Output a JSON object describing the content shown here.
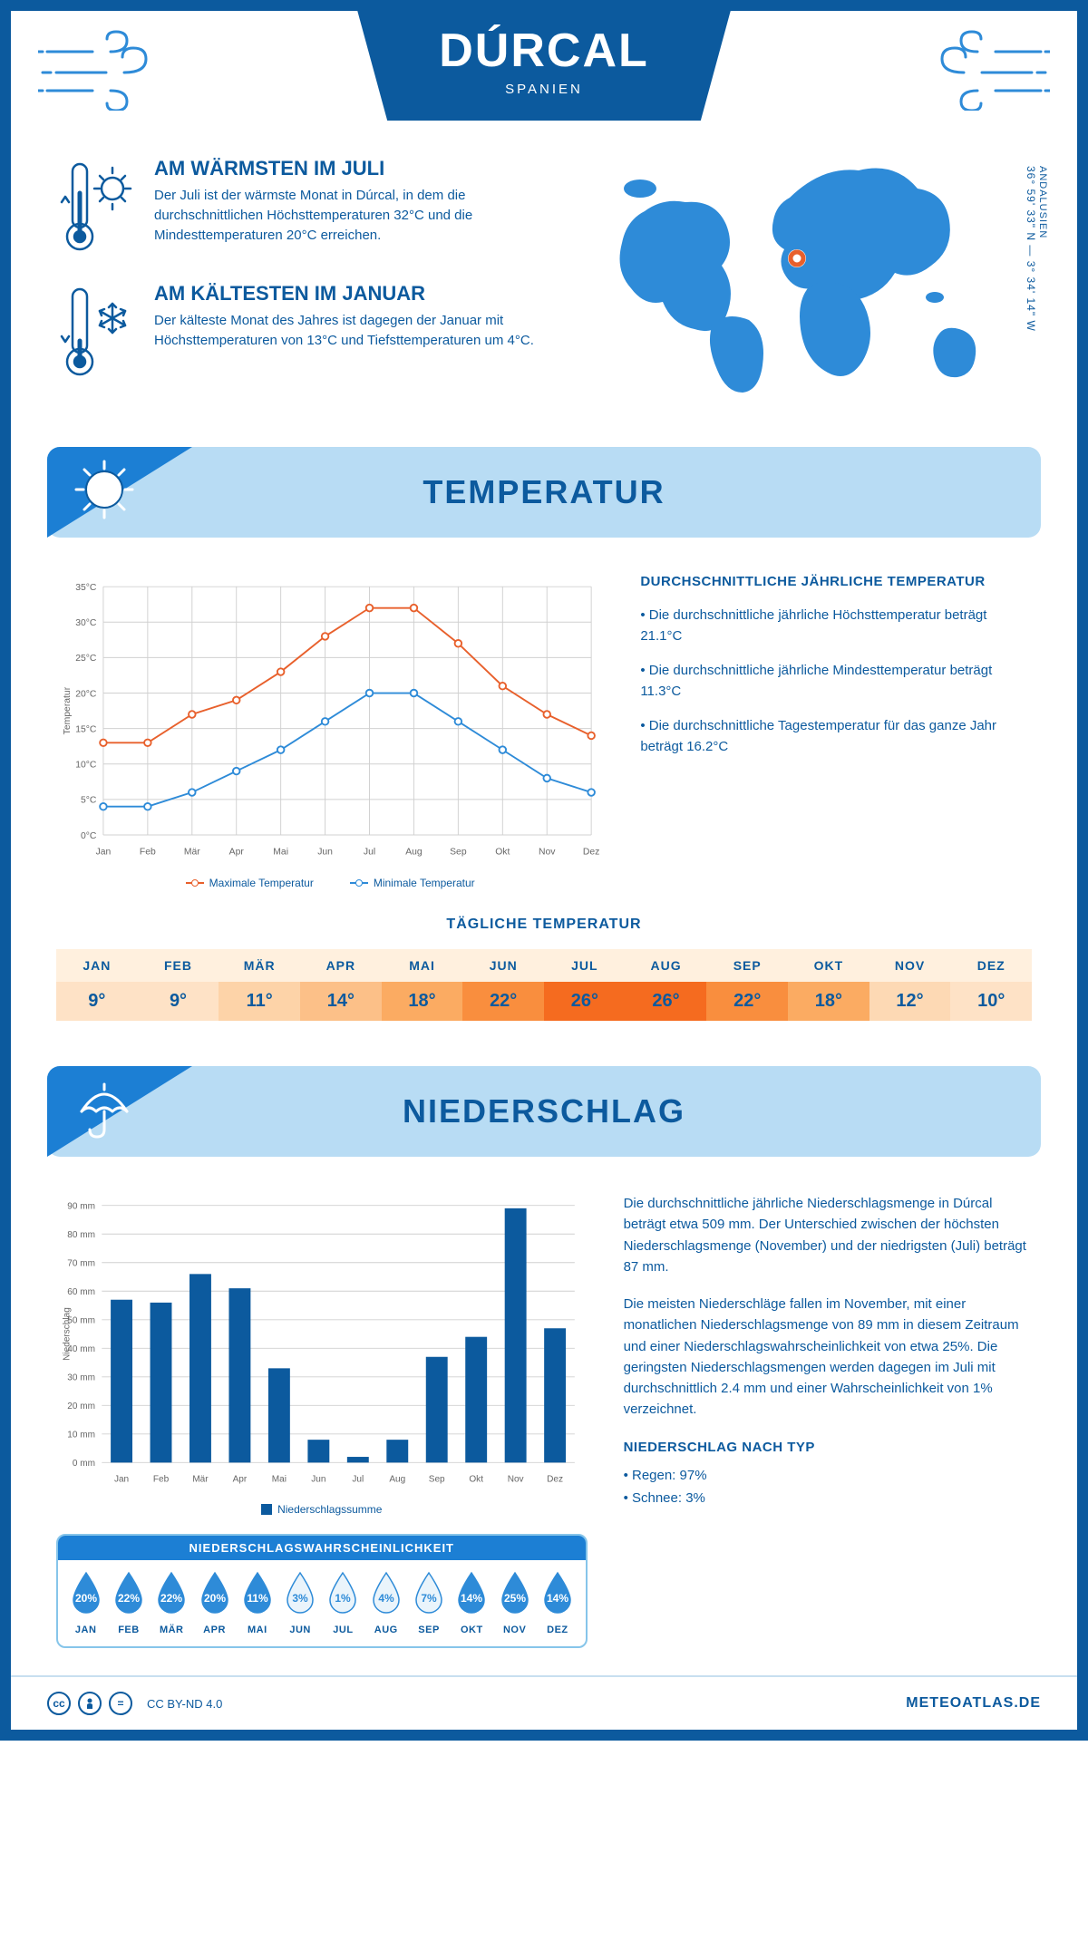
{
  "colors": {
    "primary": "#0c5a9e",
    "accent": "#1c7fd4",
    "banner_bg": "#b8dcf4",
    "max_line": "#e8602c",
    "min_line": "#2e8bd8",
    "grid": "#d0d0d0",
    "heat_header_bg": "#fff0de"
  },
  "header": {
    "title": "DÚRCAL",
    "subtitle": "SPANIEN",
    "coords": "36° 59' 33\" N — 3° 34' 14\" W",
    "region": "ANDALUSIEN"
  },
  "facts": {
    "warm": {
      "title": "AM WÄRMSTEN IM JULI",
      "text": "Der Juli ist der wärmste Monat in Dúrcal, in dem die durchschnittlichen Höchsttemperaturen 32°C und die Mindesttemperaturen 20°C erreichen."
    },
    "cold": {
      "title": "AM KÄLTESTEN IM JANUAR",
      "text": "Der kälteste Monat des Jahres ist dagegen der Januar mit Höchsttemperaturen von 13°C und Tiefsttemperaturen um 4°C."
    }
  },
  "temperature": {
    "banner": "TEMPERATUR",
    "info_title": "DURCHSCHNITTLICHE JÄHRLICHE TEMPERATUR",
    "info_points": [
      "• Die durchschnittliche jährliche Höchsttemperatur beträgt 21.1°C",
      "• Die durchschnittliche jährliche Mindesttemperatur beträgt 11.3°C",
      "• Die durchschnittliche Tagestemperatur für das ganze Jahr beträgt 16.2°C"
    ],
    "chart": {
      "type": "line",
      "months": [
        "Jan",
        "Feb",
        "Mär",
        "Apr",
        "Mai",
        "Jun",
        "Jul",
        "Aug",
        "Sep",
        "Okt",
        "Nov",
        "Dez"
      ],
      "max_values": [
        13,
        13,
        17,
        19,
        23,
        28,
        32,
        32,
        27,
        21,
        17,
        14
      ],
      "min_values": [
        4,
        4,
        6,
        9,
        12,
        16,
        20,
        20,
        16,
        12,
        8,
        6
      ],
      "ylim": [
        0,
        35
      ],
      "ytick_step": 5,
      "ylabel": "Temperatur",
      "y_unit": "°C",
      "legend_max": "Maximale Temperatur",
      "legend_min": "Minimale Temperatur",
      "line_width": 2,
      "marker": "circle"
    },
    "daily": {
      "title": "TÄGLICHE TEMPERATUR",
      "months": [
        "JAN",
        "FEB",
        "MÄR",
        "APR",
        "MAI",
        "JUN",
        "JUL",
        "AUG",
        "SEP",
        "OKT",
        "NOV",
        "DEZ"
      ],
      "values": [
        "9°",
        "9°",
        "11°",
        "14°",
        "18°",
        "22°",
        "26°",
        "26°",
        "22°",
        "18°",
        "12°",
        "10°"
      ],
      "cell_colors": [
        "#fee2c6",
        "#fee2c6",
        "#fdd3a8",
        "#fcc088",
        "#fbab62",
        "#f98e3e",
        "#f56b1f",
        "#f56b1f",
        "#f98e3e",
        "#fbab62",
        "#fdd9b4",
        "#fee2c6"
      ]
    }
  },
  "precipitation": {
    "banner": "NIEDERSCHLAG",
    "chart": {
      "type": "bar",
      "months": [
        "Jan",
        "Feb",
        "Mär",
        "Apr",
        "Mai",
        "Jun",
        "Jul",
        "Aug",
        "Sep",
        "Okt",
        "Nov",
        "Dez"
      ],
      "values": [
        57,
        56,
        66,
        61,
        33,
        8,
        2,
        8,
        37,
        44,
        89,
        47
      ],
      "ylim": [
        0,
        90
      ],
      "ytick_step": 10,
      "ylabel": "Niederschlag",
      "y_unit": " mm",
      "bar_color": "#0c5a9e",
      "legend": "Niederschlagssumme"
    },
    "text1": "Die durchschnittliche jährliche Niederschlagsmenge in Dúrcal beträgt etwa 509 mm. Der Unterschied zwischen der höchsten Niederschlagsmenge (November) und der niedrigsten (Juli) beträgt 87 mm.",
    "text2": "Die meisten Niederschläge fallen im November, mit einer monatlichen Niederschlagsmenge von 89 mm in diesem Zeitraum und einer Niederschlagswahrscheinlichkeit von etwa 25%. Die geringsten Niederschlagsmengen werden dagegen im Juli mit durchschnittlich 2.4 mm und einer Wahrscheinlichkeit von 1% verzeichnet.",
    "type_title": "NIEDERSCHLAG NACH TYP",
    "type_points": [
      "• Regen: 97%",
      "• Schnee: 3%"
    ],
    "prob": {
      "title": "NIEDERSCHLAGSWAHRSCHEINLICHKEIT",
      "months": [
        "JAN",
        "FEB",
        "MÄR",
        "APR",
        "MAI",
        "JUN",
        "JUL",
        "AUG",
        "SEP",
        "OKT",
        "NOV",
        "DEZ"
      ],
      "values": [
        20,
        22,
        22,
        20,
        11,
        3,
        1,
        4,
        7,
        14,
        25,
        14
      ],
      "filled_color": "#2e8bd8",
      "empty_color": "#eaf4fb",
      "text_on_fill": "#ffffff",
      "text_on_empty": "#2e8bd8",
      "fill_threshold": 10
    }
  },
  "footer": {
    "license": "CC BY-ND 4.0",
    "brand": "METEOATLAS.DE"
  }
}
